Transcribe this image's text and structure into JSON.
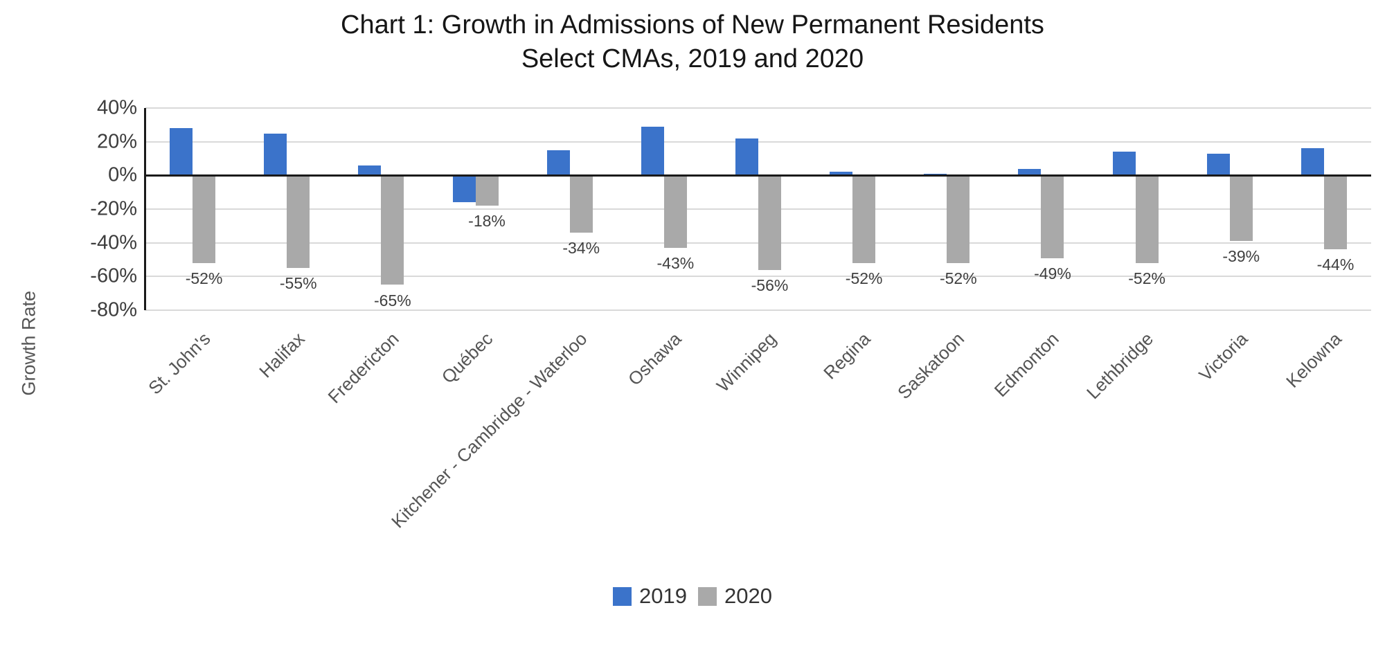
{
  "chart_data": {
    "type": "bar",
    "title_line1": "Chart 1: Growth in Admissions of New Permanent Residents",
    "title_line2": "Select CMAs, 2019 and 2020",
    "ylabel": "Growth Rate",
    "xlabel": "",
    "categories": [
      "St. John's",
      "Halifax",
      "Fredericton",
      "Québec",
      "Kitchener - Cambridge - Waterloo",
      "Oshawa",
      "Winnipeg",
      "Regina",
      "Saskatoon",
      "Edmonton",
      "Lethbridge",
      "Victoria",
      "Kelowna"
    ],
    "series": [
      {
        "name": "2019",
        "color": "#3b73ca",
        "values": [
          28,
          25,
          6,
          -16,
          15,
          29,
          22,
          2,
          1,
          4,
          14,
          13,
          16
        ],
        "data_labels": null
      },
      {
        "name": "2020",
        "color": "#a9a9a9",
        "values": [
          -52,
          -55,
          -65,
          -18,
          -34,
          -43,
          -56,
          -52,
          -52,
          -49,
          -52,
          -39,
          -44
        ],
        "data_labels": [
          "-52%",
          "-55%",
          "-65%",
          "-18%",
          "-34%",
          "-43%",
          "-56%",
          "-52%",
          "-52%",
          "-49%",
          "-52%",
          "-39%",
          "-44%"
        ]
      }
    ],
    "y_ticks": [
      {
        "label": "40%",
        "value": 40
      },
      {
        "label": "20%",
        "value": 20
      },
      {
        "label": "0%",
        "value": 0
      },
      {
        "label": "-20%",
        "value": -20
      },
      {
        "label": "-40%",
        "value": -40
      },
      {
        "label": "-60%",
        "value": -60
      },
      {
        "label": "-80%",
        "value": -80
      }
    ],
    "ylim": [
      -80,
      40
    ],
    "grid": true,
    "legend_position": "bottom",
    "colors": {
      "grid": "#d9d9d9",
      "axis": "#1a1a1a",
      "title_text": "#161616",
      "tick_text": "#3d3d3d",
      "data_label_text": "#3f3f3f",
      "category_text": "#555555"
    }
  }
}
